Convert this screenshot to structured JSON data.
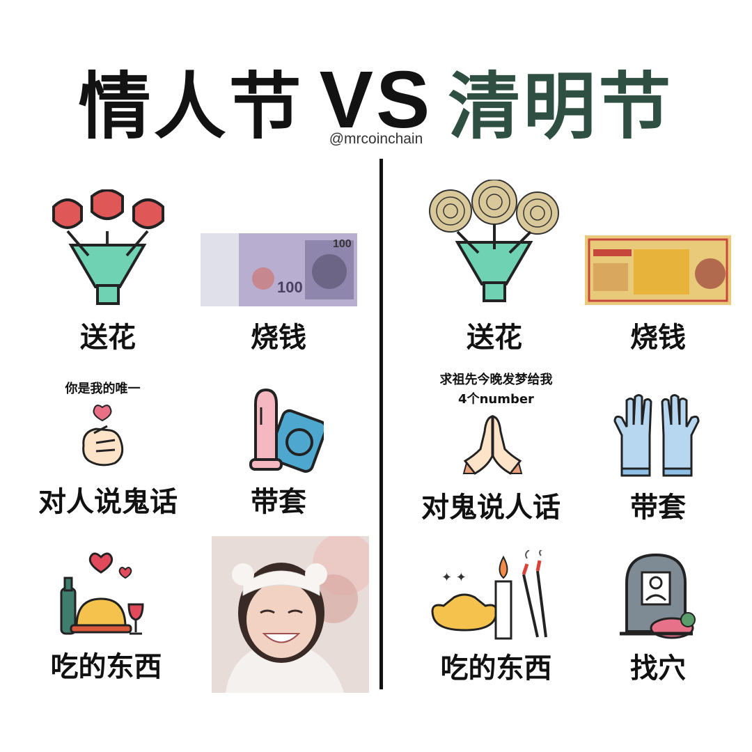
{
  "title": {
    "left": "情人节",
    "vs": "VS",
    "right": "清明节"
  },
  "handle": "@mrcoinchain",
  "left": {
    "flowers": "送花",
    "money": "烧钱",
    "note": "你是我的唯一",
    "talk": "对人说鬼话",
    "condom": "带套",
    "eat": "吃的东西",
    "banknote_value": "100"
  },
  "right": {
    "flowers": "送花",
    "money": "烧钱",
    "note_line1": "求祖先今晚发梦给我",
    "note_line2": "4个number",
    "talk": "对鬼说人话",
    "gloves": "带套",
    "eat": "吃的东西",
    "grave": "找穴"
  }
}
